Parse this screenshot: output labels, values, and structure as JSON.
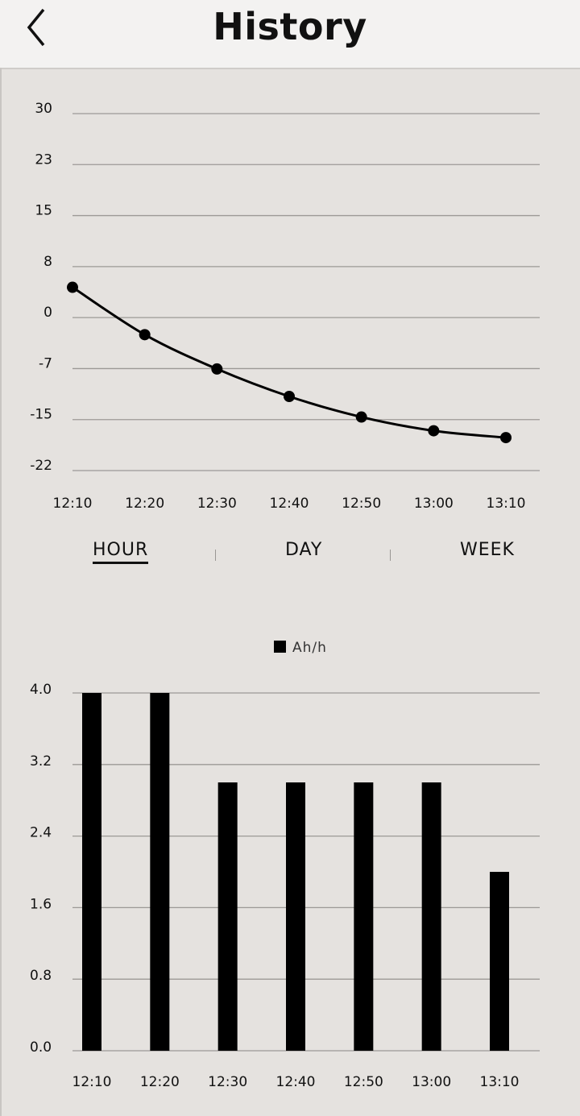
{
  "header": {
    "title": "History",
    "back_icon": "chevron-left-icon"
  },
  "tabs": [
    {
      "label": "HOUR",
      "active": true
    },
    {
      "label": "DAY",
      "active": false
    },
    {
      "label": "WEEK",
      "active": false
    }
  ],
  "chart_data": [
    {
      "type": "line",
      "x": [
        "12:10",
        "12:20",
        "12:30",
        "12:40",
        "12:50",
        "13:00",
        "13:10"
      ],
      "values": [
        4.7,
        -2.2,
        -7.2,
        -11.2,
        -14.2,
        -16.2,
        -17.2
      ],
      "yticks": [
        "30",
        "23",
        "15",
        "8",
        "0",
        "-7",
        "-15",
        "-22"
      ],
      "ylim": [
        -22,
        30
      ],
      "grid": true,
      "color": "#000000"
    },
    {
      "type": "bar",
      "categories": [
        "12:10",
        "12:20",
        "12:30",
        "12:40",
        "12:50",
        "13:00",
        "13:10"
      ],
      "series": [
        {
          "name": "Ah/h",
          "values": [
            4,
            4,
            3,
            3,
            3,
            3,
            2
          ]
        }
      ],
      "yticks": [
        "4.0",
        "3.2",
        "2.4",
        "1.6",
        "0.8",
        "0.0"
      ],
      "ylim": [
        0,
        4
      ],
      "grid": true,
      "legend": "top-center",
      "color": "#000000"
    }
  ]
}
